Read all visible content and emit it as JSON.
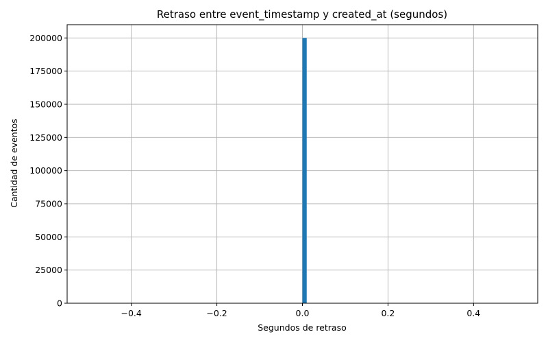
{
  "chart_data": {
    "type": "bar",
    "title": "Retraso entre event_timestamp y created_at (segundos)",
    "xlabel": "Segundos de retraso",
    "ylabel": "Cantidad de eventos",
    "xlim": [
      -0.55,
      0.55
    ],
    "ylim": [
      0,
      210000
    ],
    "xticks": [
      -0.4,
      -0.2,
      0.0,
      0.2,
      0.4
    ],
    "xtick_labels": [
      "−0.4",
      "−0.2",
      "0.0",
      "0.2",
      "0.4"
    ],
    "yticks": [
      0,
      25000,
      50000,
      75000,
      100000,
      125000,
      150000,
      175000,
      200000
    ],
    "ytick_labels": [
      "0",
      "25000",
      "50000",
      "75000",
      "100000",
      "125000",
      "150000",
      "175000",
      "200000"
    ],
    "grid": true,
    "bar_color": "#1f77b4",
    "bins": [
      {
        "x_start": 0.0,
        "x_end": 0.01,
        "count": 200000
      }
    ]
  }
}
